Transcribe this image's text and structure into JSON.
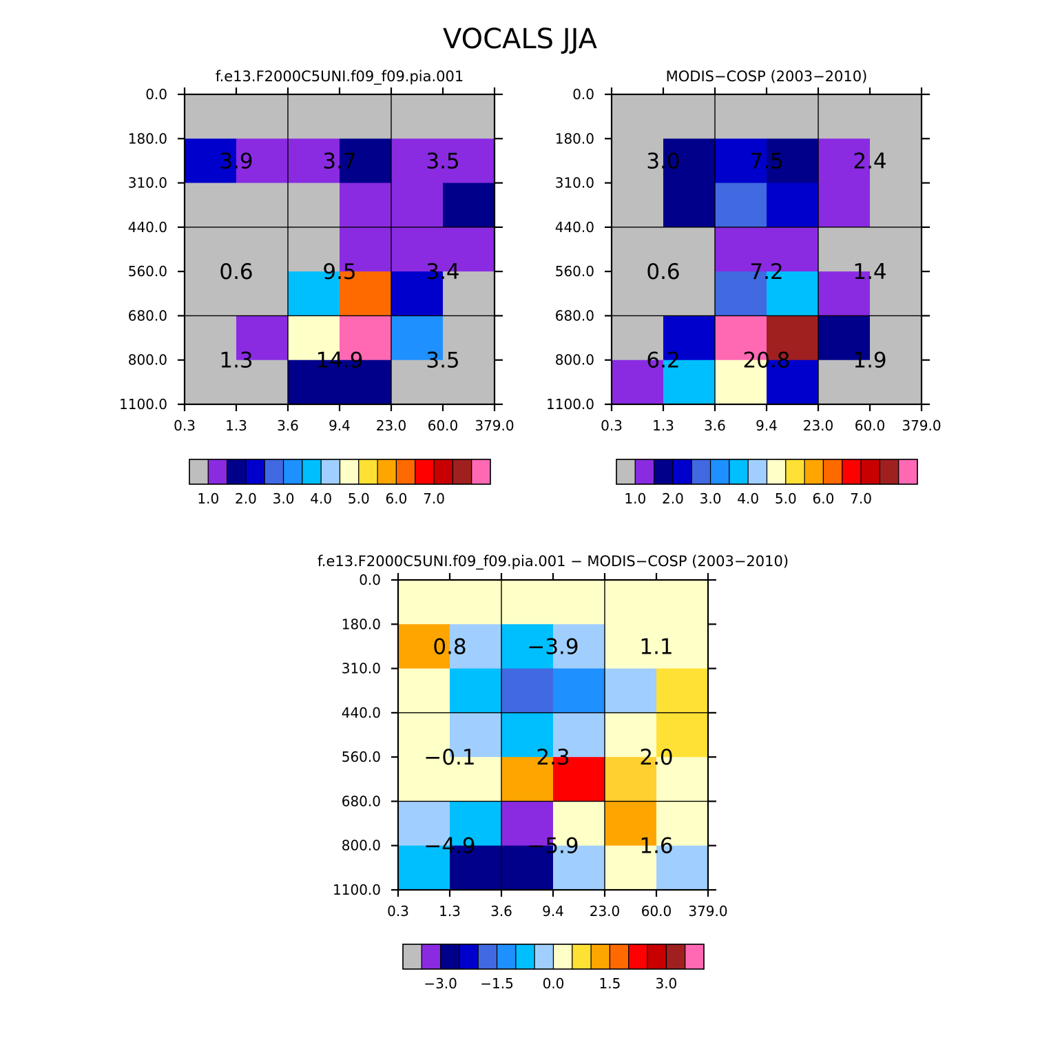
{
  "figure_title": "VOCALS JJA",
  "chart_data": [
    {
      "type": "heatmap",
      "title": "f.e13.F2000C5UNI.f09_f09.pia.001",
      "x_tick_labels": [
        "0.3",
        "1.3",
        "3.6",
        "9.4",
        "23.0",
        "60.0",
        "379.0"
      ],
      "y_tick_labels": [
        "0.0",
        "180.0",
        "310.0",
        "440.0",
        "560.0",
        "680.0",
        "800.0",
        "1100.0"
      ],
      "cell_colors": [
        [
          "#bebebe",
          "#bebebe",
          "#bebebe",
          "#bebebe",
          "#bebebe",
          "#bebebe"
        ],
        [
          "#0000cd",
          "#8a2be2",
          "#8a2be2",
          "#00008b",
          "#8a2be2",
          "#8a2be2"
        ],
        [
          "#bebebe",
          "#bebebe",
          "#bebebe",
          "#8a2be2",
          "#8a2be2",
          "#00008b"
        ],
        [
          "#bebebe",
          "#bebebe",
          "#bebebe",
          "#8a2be2",
          "#8a2be2",
          "#8a2be2"
        ],
        [
          "#bebebe",
          "#bebebe",
          "#00bfff",
          "#ff6a00",
          "#0000cd",
          "#bebebe"
        ],
        [
          "#bebebe",
          "#8a2be2",
          "#ffffc8",
          "#ff69b4",
          "#1e90ff",
          "#bebebe"
        ],
        [
          "#bebebe",
          "#bebebe",
          "#00008b",
          "#00008b",
          "#bebebe",
          "#bebebe"
        ]
      ],
      "block_values": [
        [
          "3.9",
          "3.7",
          "3.5"
        ],
        [
          "0.6",
          "9.5",
          "3.4"
        ],
        [
          "1.3",
          "14.9",
          "3.5"
        ]
      ],
      "colorbar": {
        "colors": [
          "#bebebe",
          "#8a2be2",
          "#00008b",
          "#0000cd",
          "#4169e1",
          "#1e90ff",
          "#00bfff",
          "#a0cfff",
          "#ffffc8",
          "#ffe135",
          "#ffa500",
          "#ff6a00",
          "#ff0000",
          "#c80000",
          "#a02020",
          "#ff69b4"
        ],
        "labels": [
          "1.0",
          "2.0",
          "3.0",
          "4.0",
          "5.0",
          "6.0",
          "7.0"
        ]
      }
    },
    {
      "type": "heatmap",
      "title": "MODIS-COSP (2003-2010)",
      "x_tick_labels": [
        "0.3",
        "1.3",
        "3.6",
        "9.4",
        "23.0",
        "60.0",
        "379.0"
      ],
      "y_tick_labels": [
        "0.0",
        "180.0",
        "310.0",
        "440.0",
        "560.0",
        "680.0",
        "800.0",
        "1100.0"
      ],
      "cell_colors": [
        [
          "#bebebe",
          "#bebebe",
          "#bebebe",
          "#bebebe",
          "#bebebe",
          "#bebebe"
        ],
        [
          "#bebebe",
          "#00008b",
          "#0000cd",
          "#00008b",
          "#8a2be2",
          "#bebebe"
        ],
        [
          "#bebebe",
          "#00008b",
          "#4169e1",
          "#0000cd",
          "#8a2be2",
          "#bebebe"
        ],
        [
          "#bebebe",
          "#bebebe",
          "#8a2be2",
          "#8a2be2",
          "#bebebe",
          "#bebebe"
        ],
        [
          "#bebebe",
          "#bebebe",
          "#4169e1",
          "#00bfff",
          "#8a2be2",
          "#bebebe"
        ],
        [
          "#bebebe",
          "#0000cd",
          "#ff69b4",
          "#a02020",
          "#00008b",
          "#bebebe"
        ],
        [
          "#8a2be2",
          "#00bfff",
          "#ffffc8",
          "#0000cd",
          "#bebebe",
          "#bebebe"
        ]
      ],
      "block_values": [
        [
          "3.0",
          "7.5",
          "2.4"
        ],
        [
          "0.6",
          "7.2",
          "1.4"
        ],
        [
          "6.2",
          "20.8",
          "1.9"
        ]
      ],
      "colorbar": {
        "colors": [
          "#bebebe",
          "#8a2be2",
          "#00008b",
          "#0000cd",
          "#4169e1",
          "#1e90ff",
          "#00bfff",
          "#a0cfff",
          "#ffffc8",
          "#ffe135",
          "#ffa500",
          "#ff6a00",
          "#ff0000",
          "#c80000",
          "#a02020",
          "#ff69b4"
        ],
        "labels": [
          "1.0",
          "2.0",
          "3.0",
          "4.0",
          "5.0",
          "6.0",
          "7.0"
        ]
      }
    },
    {
      "type": "heatmap",
      "title": "f.e13.F2000C5UNI.f09_f09.pia.001 - MODIS-COSP (2003-2010)",
      "x_tick_labels": [
        "0.3",
        "1.3",
        "3.6",
        "9.4",
        "23.0",
        "60.0",
        "379.0"
      ],
      "y_tick_labels": [
        "0.0",
        "180.0",
        "310.0",
        "440.0",
        "560.0",
        "680.0",
        "800.0",
        "1100.0"
      ],
      "cell_colors": [
        [
          "#ffffc8",
          "#ffffc8",
          "#ffffc8",
          "#ffffc8",
          "#ffffc8",
          "#ffffc8"
        ],
        [
          "#ffa500",
          "#a0cfff",
          "#00bfff",
          "#a0cfff",
          "#ffffc8",
          "#ffffc8"
        ],
        [
          "#ffffc8",
          "#00bfff",
          "#4169e1",
          "#1e90ff",
          "#a0cfff",
          "#ffe135"
        ],
        [
          "#ffffc8",
          "#a0cfff",
          "#00bfff",
          "#a0cfff",
          "#ffffc8",
          "#ffe135"
        ],
        [
          "#ffffc8",
          "#ffffc8",
          "#ffa500",
          "#ff0000",
          "#ffd030",
          "#ffffc8"
        ],
        [
          "#a0cfff",
          "#00bfff",
          "#8a2be2",
          "#ffffc8",
          "#ffa500",
          "#ffffc8"
        ],
        [
          "#00bfff",
          "#00008b",
          "#00008b",
          "#a0cfff",
          "#ffffc8",
          "#a0cfff"
        ]
      ],
      "block_values": [
        [
          "0.8",
          "-3.9",
          "1.1"
        ],
        [
          "-0.1",
          "2.3",
          "2.0"
        ],
        [
          "-4.9",
          "-5.9",
          "1.6"
        ]
      ],
      "colorbar": {
        "colors": [
          "#bebebe",
          "#8a2be2",
          "#00008b",
          "#0000cd",
          "#4169e1",
          "#1e90ff",
          "#00bfff",
          "#a0cfff",
          "#ffffc8",
          "#ffe135",
          "#ffa500",
          "#ff6a00",
          "#ff0000",
          "#c80000",
          "#a02020",
          "#ff69b4"
        ],
        "labels": [
          "-3.0",
          "-1.5",
          "0.0",
          "1.5",
          "3.0"
        ]
      }
    }
  ]
}
